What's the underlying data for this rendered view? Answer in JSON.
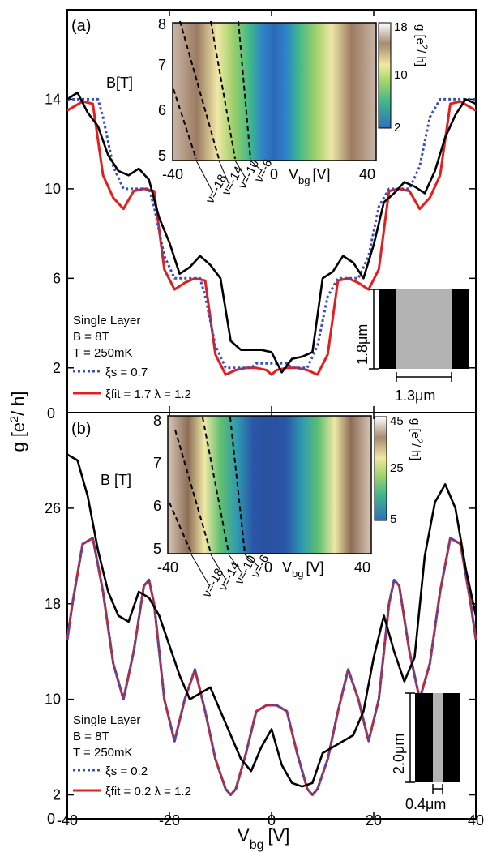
{
  "chart_data": [
    {
      "type": "line",
      "panel_label": "(a)",
      "xlim": [
        -40,
        40
      ],
      "ylim": [
        0,
        18
      ],
      "yticks": [
        2,
        6,
        10,
        14
      ],
      "legend": {
        "placement": "bottom-left",
        "title_lines": [
          "Single Layer",
          "B = 8T",
          "T = 250mK"
        ],
        "entries": [
          {
            "text": "ξs = 0.7",
            "style": "dotted",
            "color": "#3a4fb0"
          },
          {
            "text": "ξfit = 1.7   λ = 1.2",
            "style": "solid",
            "color": "#e02020"
          }
        ]
      },
      "series": [
        {
          "name": "experiment",
          "color": "#000000",
          "style": "solid",
          "x": [
            -40,
            -38,
            -36,
            -34,
            -32,
            -30,
            -28,
            -26,
            -24,
            -22,
            -20,
            -18,
            -16,
            -14,
            -12,
            -10,
            -8,
            -6,
            -4,
            -2,
            0,
            2,
            4,
            6,
            8,
            10,
            12,
            14,
            16,
            18,
            20,
            22,
            24,
            26,
            28,
            30,
            32,
            34,
            36,
            38,
            40
          ],
          "y": [
            14.0,
            14.3,
            13.4,
            12.8,
            11.5,
            10.8,
            10.6,
            10.9,
            10.4,
            8.7,
            7.6,
            6.2,
            6.5,
            7.0,
            6.6,
            6.0,
            3.2,
            2.8,
            2.8,
            2.8,
            2.7,
            1.8,
            2.4,
            2.5,
            2.7,
            6.0,
            6.3,
            7.0,
            6.7,
            6.0,
            7.5,
            9.4,
            9.8,
            10.3,
            10.1,
            9.8,
            10.8,
            12.3,
            13.3,
            14.0,
            13.8
          ]
        },
        {
          "name": "ξs fit",
          "color": "#3a4fb0",
          "style": "dotted",
          "x": [
            -40,
            -37,
            -35,
            -34,
            -33,
            -31,
            -29,
            -27,
            -25,
            -24,
            -23,
            -21,
            -19,
            -17,
            -15,
            -14,
            -13,
            -11,
            -9,
            -7,
            -5,
            -4,
            -3,
            -1,
            0,
            1,
            3,
            4,
            5,
            7,
            9,
            11,
            13,
            14,
            15,
            17,
            19,
            21,
            23,
            24,
            25,
            27,
            29,
            31,
            33,
            34,
            35,
            37,
            40
          ],
          "y": [
            14,
            14,
            14,
            14,
            13.2,
            11,
            10,
            10,
            10,
            10,
            9.2,
            7,
            6,
            6,
            6,
            6,
            5.2,
            3,
            2,
            2,
            2,
            2,
            2.2,
            2.2,
            2.2,
            2.2,
            2.2,
            2,
            2,
            2,
            3,
            5.2,
            6,
            6,
            6,
            6,
            7,
            9.2,
            10,
            10,
            10,
            10,
            11,
            13.2,
            14,
            14,
            14,
            14,
            14
          ]
        },
        {
          "name": "ξfit fit",
          "color": "#e02020",
          "style": "solid",
          "x": [
            -40,
            -37,
            -35,
            -33,
            -31,
            -29,
            -27,
            -25,
            -23,
            -21,
            -19,
            -17,
            -15,
            -13,
            -11,
            -9,
            -7,
            -5,
            -3,
            -1,
            0,
            1,
            3,
            5,
            7,
            9,
            11,
            13,
            15,
            17,
            19,
            21,
            23,
            25,
            27,
            29,
            31,
            33,
            35,
            37,
            40
          ],
          "y": [
            13.5,
            13.9,
            13.8,
            10.6,
            9.6,
            9.1,
            9.9,
            10.0,
            9.9,
            6.4,
            5.5,
            5.8,
            6.0,
            5.9,
            2.6,
            1.7,
            1.9,
            2.0,
            2.0,
            1.9,
            1.7,
            1.9,
            2.0,
            2.0,
            1.9,
            1.7,
            2.6,
            5.9,
            6.0,
            5.8,
            5.5,
            6.4,
            9.9,
            10.0,
            9.9,
            9.1,
            9.6,
            10.6,
            13.8,
            13.9,
            13.5
          ]
        }
      ],
      "inset": {
        "xlabel": "V",
        "xlabel_sub": "bg",
        "xlabel_unit": "[V]",
        "ylabel": "B[T]",
        "xticks": [
          -40,
          0,
          40
        ],
        "yticks": [
          5,
          6,
          7,
          8
        ],
        "colorbar_label": "g [e",
        "colorbar_label_sup": "2",
        "colorbar_label_end": "/ h]",
        "colorbar_ticks": [
          2,
          10,
          18
        ],
        "filling_labels": [
          "ν=-18",
          "ν=-14",
          "ν=-10",
          "ν=-6"
        ]
      },
      "device": {
        "height_label": "1.8μm",
        "width_label": "1.3μm"
      }
    },
    {
      "type": "line",
      "panel_label": "(b)",
      "xlim": [
        -40,
        40
      ],
      "ylim": [
        0,
        34
      ],
      "yticks": [
        2,
        10,
        18,
        26
      ],
      "legend": {
        "placement": "bottom-left",
        "title_lines": [
          "Single Layer",
          "B = 8T",
          "T = 250mK"
        ],
        "entries": [
          {
            "text": "ξs = 0.2",
            "style": "dotted",
            "color": "#3a4fb0"
          },
          {
            "text": "ξfit = 0.2   λ = 1.2",
            "style": "solid",
            "color": "#e02020"
          }
        ]
      },
      "series": [
        {
          "name": "experiment",
          "color": "#000000",
          "style": "solid",
          "x": [
            -40,
            -38,
            -36,
            -34,
            -32,
            -30,
            -28,
            -26,
            -24,
            -22,
            -20,
            -18,
            -16,
            -14,
            -12,
            -10,
            -8,
            -6,
            -4,
            -2,
            0,
            2,
            4,
            6,
            8,
            10,
            12,
            14,
            16,
            18,
            20,
            22,
            24,
            26,
            28,
            30,
            32,
            34,
            36,
            38,
            40
          ],
          "y": [
            30.5,
            30.0,
            27.0,
            22.5,
            19.0,
            17.0,
            16.5,
            19.0,
            18.5,
            17.0,
            14.5,
            12.0,
            10.0,
            10.5,
            11.0,
            9.0,
            7.0,
            5.0,
            4.0,
            6.0,
            7.5,
            4.5,
            3.0,
            2.7,
            3.0,
            5.5,
            6.0,
            6.5,
            7.0,
            9.0,
            13.5,
            17.0,
            14.0,
            11.5,
            13.5,
            22.0,
            26.5,
            28.0,
            26.0,
            21.0,
            17.0
          ]
        },
        {
          "name": "ξs fit",
          "color": "#3a4fb0",
          "style": "dotted",
          "same_as": "ξfit fit"
        },
        {
          "name": "ξfit fit",
          "color": "#e02020",
          "style": "solid",
          "x": [
            -40,
            -39,
            -37,
            -35,
            -33,
            -31,
            -29,
            -27,
            -25,
            -24,
            -23,
            -21,
            -19,
            -17,
            -15,
            -13,
            -11,
            -9,
            -8,
            -7,
            -5,
            -3,
            -1,
            1,
            3,
            5,
            7,
            8,
            9,
            11,
            13,
            15,
            17,
            19,
            21,
            23,
            24,
            25,
            27,
            29,
            31,
            33,
            35,
            37,
            39,
            40
          ],
          "y": [
            15.0,
            18.0,
            23.0,
            23.5,
            19.0,
            13.0,
            10.0,
            14.0,
            19.5,
            20.0,
            18.0,
            10.0,
            6.5,
            10.0,
            12.5,
            9.0,
            5.0,
            2.5,
            2.0,
            2.5,
            5.5,
            9.0,
            9.5,
            9.5,
            9.0,
            5.5,
            2.5,
            2.0,
            2.5,
            5.0,
            9.0,
            12.5,
            10.0,
            6.5,
            10.0,
            18.0,
            20.0,
            19.5,
            14.0,
            10.0,
            13.0,
            19.0,
            23.5,
            23.0,
            18.0,
            15.0
          ]
        }
      ],
      "inset": {
        "xlabel": "V",
        "xlabel_sub": "bg",
        "xlabel_unit": "[V]",
        "ylabel": "B [T]",
        "xticks": [
          -40,
          0,
          40
        ],
        "yticks": [
          5,
          6,
          7,
          8
        ],
        "colorbar_label": "g [e",
        "colorbar_label_sup": "2",
        "colorbar_label_end": "/ h]",
        "colorbar_ticks": [
          5,
          25,
          45
        ],
        "filling_labels": [
          "ν=-18",
          "ν=-14",
          "ν=-10",
          "ν=-6"
        ]
      },
      "device": {
        "height_label": "2.0μm",
        "width_label": "0.4μm"
      }
    }
  ],
  "axes": {
    "ylabel": "g [e",
    "ylabel_sup": "2",
    "ylabel_end": "/ h]",
    "xlabel": "V",
    "xlabel_sub": "bg",
    "xlabel_unit": "[V]",
    "xticks": [
      -40,
      -20,
      0,
      20,
      40
    ],
    "zero_label": "0"
  }
}
